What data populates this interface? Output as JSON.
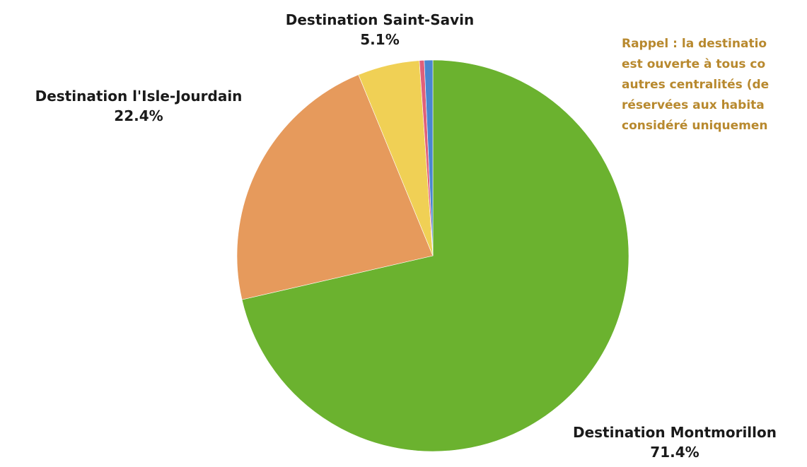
{
  "chart_data": {
    "type": "pie",
    "slices": [
      {
        "label": "Destination Montmorillon",
        "value": 71.4,
        "display": "71.4%",
        "color": "#6bb22f"
      },
      {
        "label": "Destination l'Isle-Jourdain",
        "value": 22.4,
        "display": "22.4%",
        "color": "#e69a5c"
      },
      {
        "label": "Destination Saint-Savin",
        "value": 5.1,
        "display": "5.1%",
        "color": "#f0d055"
      },
      {
        "label": "",
        "value": 0.4,
        "display": "",
        "color": "#e0607a"
      },
      {
        "label": "",
        "value": 0.7,
        "display": "",
        "color": "#4a86d0"
      }
    ],
    "start_angle_deg": 0,
    "direction": "clockwise",
    "legend": "none"
  },
  "labels": {
    "saint_savin_name": "Destination Saint-Savin",
    "saint_savin_pct": "5.1%",
    "isle_jourdain_name": "Destination l'Isle-Jourdain",
    "isle_jourdain_pct": "22.4%",
    "montmorillon_name": "Destination Montmorillon",
    "montmorillon_pct": "71.4%"
  },
  "note": {
    "line1": "Rappel : la destinatio",
    "line2": "est ouverte à tous co",
    "line3": "autres centralités (de",
    "line4": "réservées aux habita",
    "line5": "considéré uniquemen",
    "color": "#b8892e"
  }
}
